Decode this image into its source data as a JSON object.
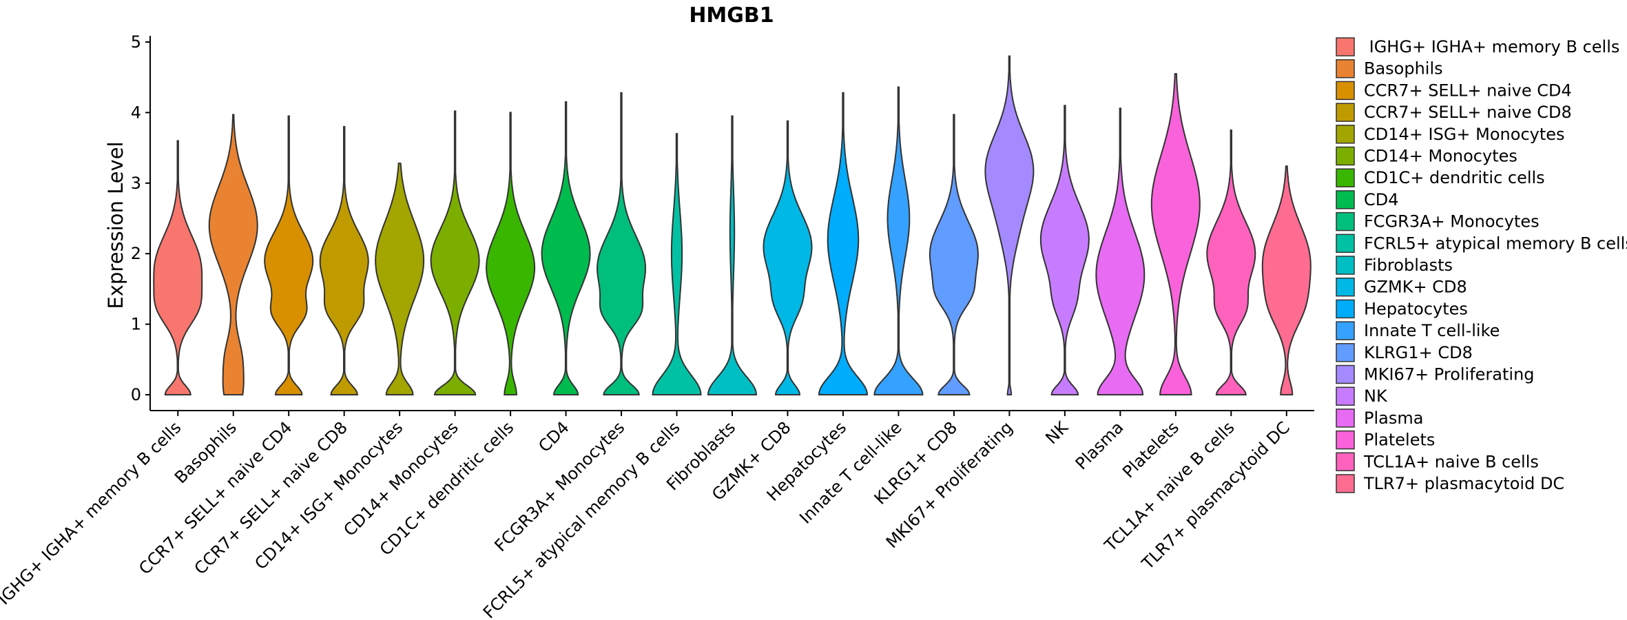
{
  "chart_data": {
    "type": "violin",
    "title": "HMGB1",
    "xlabel": "",
    "ylabel": "Expression Level",
    "ylim": [
      -0.25,
      5.05
    ],
    "yticks": [
      0,
      1,
      2,
      3,
      4,
      5
    ],
    "legend_position": "right",
    "categories": [
      {
        "label": "IGHG+ IGHA+ memory B cells",
        "legend": " IGHG+ IGHA+ memory B cells",
        "color": "#F8766D",
        "max": 3.6,
        "zero_w": 0.55,
        "zero_top": 0.28,
        "peaks": [
          [
            1.8,
            0.45,
            1.0
          ],
          [
            1.2,
            0.25,
            0.5
          ]
        ]
      },
      {
        "label": "Basophils",
        "legend": "Basophils",
        "color": "#EA8331",
        "max": 3.97,
        "zero_w": 0.3,
        "zero_top": 0.55,
        "peaks": [
          [
            2.4,
            0.55,
            1.0
          ],
          [
            0.5,
            0.3,
            0.35
          ]
        ]
      },
      {
        "label": "CCR7+ SELL+ naive CD4",
        "legend": "CCR7+ SELL+ naive CD4",
        "color": "#D89000",
        "max": 3.95,
        "zero_w": 0.55,
        "zero_top": 0.28,
        "peaks": [
          [
            1.9,
            0.4,
            1.0
          ],
          [
            1.15,
            0.2,
            0.55
          ]
        ]
      },
      {
        "label": "CCR7+ SELL+ naive CD8",
        "legend": "CCR7+ SELL+ naive CD8",
        "color": "#C09B00",
        "max": 3.8,
        "zero_w": 0.55,
        "zero_top": 0.28,
        "peaks": [
          [
            1.9,
            0.4,
            1.0
          ],
          [
            1.2,
            0.22,
            0.55
          ]
        ]
      },
      {
        "label": "CD14+ ISG+ Monocytes",
        "legend": "CD14+ ISG+ Monocytes",
        "color": "#A3A500",
        "max": 3.28,
        "zero_w": 0.55,
        "zero_top": 0.35,
        "peaks": [
          [
            1.9,
            0.55,
            1.0
          ]
        ]
      },
      {
        "label": "CD14+ Monocytes",
        "legend": "CD14+ Monocytes",
        "color": "#7CAE00",
        "max": 4.02,
        "zero_w": 0.55,
        "zero_top": 0.28,
        "peaks": [
          [
            1.9,
            0.45,
            0.65
          ]
        ]
      },
      {
        "label": "CD1C+ dendritic cells",
        "legend": "CD1C+ dendritic cells",
        "color": "#39B600",
        "max": 4.0,
        "zero_w": 0.25,
        "zero_top": 0.4,
        "peaks": [
          [
            1.8,
            0.5,
            1.0
          ]
        ]
      },
      {
        "label": "CD4",
        "legend": "CD4",
        "color": "#00BB4E",
        "max": 4.15,
        "zero_w": 0.5,
        "zero_top": 0.3,
        "peaks": [
          [
            2.0,
            0.5,
            1.0
          ]
        ]
      },
      {
        "label": "FCGR3A+ Monocytes",
        "legend": "FCGR3A+ Monocytes",
        "color": "#00BF7D",
        "max": 4.28,
        "zero_w": 0.55,
        "zero_top": 0.3,
        "peaks": [
          [
            1.8,
            0.45,
            0.75
          ],
          [
            1.15,
            0.2,
            0.35
          ]
        ]
      },
      {
        "label": "FCRL5+ atypical memory B cells",
        "legend": "FCRL5+ atypical memory B cells",
        "color": "#00C1A3",
        "max": 3.7,
        "zero_w": 0.55,
        "zero_top": 0.6,
        "peaks": [
          [
            2.0,
            0.6,
            0.12
          ]
        ]
      },
      {
        "label": "Fibroblasts",
        "legend": "Fibroblasts",
        "color": "#00BFC4",
        "max": 3.95,
        "zero_w": 0.55,
        "zero_top": 0.55,
        "peaks": [
          [
            2.3,
            0.6,
            0.05
          ]
        ]
      },
      {
        "label": "GZMK+ CD8",
        "legend": "GZMK+ CD8",
        "color": "#00B8E5",
        "max": 3.88,
        "zero_w": 0.5,
        "zero_top": 0.3,
        "peaks": [
          [
            2.1,
            0.45,
            1.0
          ],
          [
            1.3,
            0.25,
            0.4
          ]
        ]
      },
      {
        "label": "Hepatocytes",
        "legend": "Hepatocytes",
        "color": "#00ACFC",
        "max": 4.28,
        "zero_w": 0.55,
        "zero_top": 0.55,
        "peaks": [
          [
            2.2,
            0.6,
            0.35
          ]
        ]
      },
      {
        "label": "Innate T cell-like",
        "legend": "Innate T cell-like",
        "color": "#35A2FF",
        "max": 4.36,
        "zero_w": 0.55,
        "zero_top": 0.5,
        "peaks": [
          [
            2.5,
            0.55,
            0.25
          ]
        ]
      },
      {
        "label": "KLRG1+ CD8",
        "legend": "KLRG1+ CD8",
        "color": "#619CFF",
        "max": 3.97,
        "zero_w": 0.55,
        "zero_top": 0.28,
        "peaks": [
          [
            2.0,
            0.45,
            0.85
          ],
          [
            1.4,
            0.2,
            0.3
          ]
        ]
      },
      {
        "label": "MKI67+ Proliferating",
        "legend": "MKI67+ Proliferating",
        "color": "#A58AFF",
        "max": 4.8,
        "zero_w": 0.08,
        "zero_top": 0.2,
        "peaks": [
          [
            3.2,
            0.5,
            1.0
          ],
          [
            2.3,
            0.4,
            0.25
          ]
        ]
      },
      {
        "label": "NK",
        "legend": "NK",
        "color": "#C77CFF",
        "max": 4.1,
        "zero_w": 0.55,
        "zero_top": 0.28,
        "peaks": [
          [
            2.2,
            0.5,
            1.0
          ],
          [
            1.3,
            0.25,
            0.3
          ]
        ]
      },
      {
        "label": "Plasma",
        "legend": "Plasma",
        "color": "#E76BF3",
        "max": 4.06,
        "zero_w": 0.55,
        "zero_top": 0.5,
        "peaks": [
          [
            1.7,
            0.6,
            0.6
          ]
        ]
      },
      {
        "label": "Platelets",
        "legend": "Platelets",
        "color": "#FA62DB",
        "max": 4.55,
        "zero_w": 0.55,
        "zero_top": 0.55,
        "peaks": [
          [
            2.7,
            0.7,
            0.85
          ]
        ]
      },
      {
        "label": "TCL1A+ naive B cells",
        "legend": "TCL1A+ naive B cells",
        "color": "#FF62BC",
        "max": 3.75,
        "zero_w": 0.55,
        "zero_top": 0.28,
        "peaks": [
          [
            2.0,
            0.45,
            0.9
          ],
          [
            1.2,
            0.22,
            0.4
          ]
        ]
      },
      {
        "label": "TLR7+ plasmacytoid DC",
        "legend": "TLR7+ plasmacytoid DC",
        "color": "#FF6C91",
        "max": 3.24,
        "zero_w": 0.25,
        "zero_top": 0.4,
        "peaks": [
          [
            1.9,
            0.5,
            1.0
          ],
          [
            1.2,
            0.3,
            0.4
          ]
        ]
      }
    ]
  }
}
